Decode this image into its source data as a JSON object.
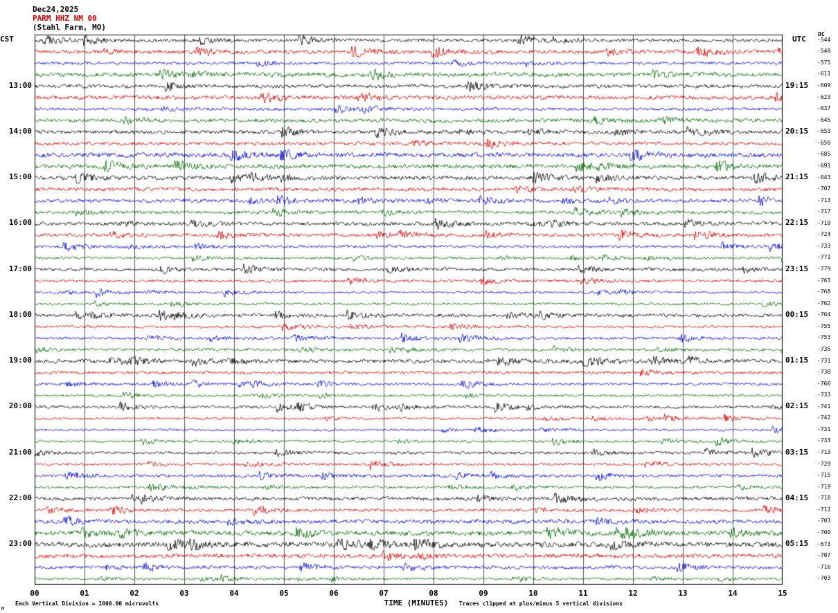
{
  "header": {
    "date": "Dec24,2025",
    "station": "PARM HHZ NM 00",
    "location": "(Stahl Farm, MO)"
  },
  "axes": {
    "left_label": "CST",
    "right_label": "UTC",
    "dc_label": "DC",
    "x_label": "TIME (MINUTES)",
    "x_ticks": [
      "00",
      "01",
      "02",
      "03",
      "04",
      "05",
      "06",
      "07",
      "08",
      "09",
      "10",
      "11",
      "12",
      "13",
      "14",
      "15"
    ]
  },
  "footer": {
    "left_note": "Each Vertical Division = 1000.00 microvolts",
    "right_note": "Traces clipped at plus/minus 5 vertical divisions",
    "corner_mark": "M"
  },
  "chart_data": {
    "type": "line",
    "title": "PARM HHZ NM 00 (Stahl Farm, MO) Dec24,2025 helicorder seismogram",
    "xlabel": "TIME (MINUTES)",
    "x_range": [
      0,
      15
    ],
    "row_duration_minutes": 15,
    "rows_per_hour": 4,
    "volts_per_division": "1000.00 microvolts",
    "clip_divisions": 5,
    "grid": true,
    "row_colors_cycle": [
      "#000000",
      "#d40000",
      "#0000cc",
      "#006600"
    ],
    "waveform_note": "continuous seismic background noise traces; rendered as seeded pseudo-random noise, per-row relative amplitude given by amp",
    "rows": [
      {
        "cst": "",
        "utc": "",
        "dc": -544,
        "amp": 1.4
      },
      {
        "cst": "",
        "utc": "",
        "dc": -548,
        "amp": 1.6
      },
      {
        "cst": "",
        "utc": "",
        "dc": -575,
        "amp": 1.2
      },
      {
        "cst": "",
        "utc": "",
        "dc": -611,
        "amp": 1.8
      },
      {
        "cst": "13:00",
        "utc": "19:15",
        "dc": -609,
        "amp": 1.5
      },
      {
        "cst": "",
        "utc": "",
        "dc": -623,
        "amp": 1.7
      },
      {
        "cst": "",
        "utc": "",
        "dc": -637,
        "amp": 1.3
      },
      {
        "cst": "",
        "utc": "",
        "dc": -645,
        "amp": 1.6
      },
      {
        "cst": "14:00",
        "utc": "20:15",
        "dc": -653,
        "amp": 1.6
      },
      {
        "cst": "",
        "utc": "",
        "dc": -650,
        "amp": 1.5
      },
      {
        "cst": "",
        "utc": "",
        "dc": -685,
        "amp": 2.0
      },
      {
        "cst": "",
        "utc": "",
        "dc": -691,
        "amp": 1.8
      },
      {
        "cst": "15:00",
        "utc": "21:15",
        "dc": -643,
        "amp": 1.7
      },
      {
        "cst": "",
        "utc": "",
        "dc": -707,
        "amp": 1.6
      },
      {
        "cst": "",
        "utc": "",
        "dc": -713,
        "amp": 1.5
      },
      {
        "cst": "",
        "utc": "",
        "dc": -717,
        "amp": 1.4
      },
      {
        "cst": "16:00",
        "utc": "22:15",
        "dc": -719,
        "amp": 1.5
      },
      {
        "cst": "",
        "utc": "",
        "dc": -724,
        "amp": 1.5
      },
      {
        "cst": "",
        "utc": "",
        "dc": -733,
        "amp": 1.2
      },
      {
        "cst": "",
        "utc": "",
        "dc": -771,
        "amp": 1.1
      },
      {
        "cst": "17:00",
        "utc": "23:15",
        "dc": -779,
        "amp": 1.4
      },
      {
        "cst": "",
        "utc": "",
        "dc": -763,
        "amp": 1.2
      },
      {
        "cst": "",
        "utc": "",
        "dc": -768,
        "amp": 1.0
      },
      {
        "cst": "",
        "utc": "",
        "dc": -762,
        "amp": 1.0
      },
      {
        "cst": "18:00",
        "utc": "00:15",
        "dc": -764,
        "amp": 1.4
      },
      {
        "cst": "",
        "utc": "",
        "dc": -755,
        "amp": 1.1
      },
      {
        "cst": "",
        "utc": "",
        "dc": -753,
        "amp": 1.2
      },
      {
        "cst": "",
        "utc": "",
        "dc": -735,
        "amp": 1.2
      },
      {
        "cst": "19:00",
        "utc": "01:15",
        "dc": -731,
        "amp": 1.7
      },
      {
        "cst": "",
        "utc": "",
        "dc": -730,
        "amp": 1.3
      },
      {
        "cst": "",
        "utc": "",
        "dc": -760,
        "amp": 1.1
      },
      {
        "cst": "",
        "utc": "",
        "dc": -733,
        "amp": 1.0
      },
      {
        "cst": "20:00",
        "utc": "02:15",
        "dc": -741,
        "amp": 1.2
      },
      {
        "cst": "",
        "utc": "",
        "dc": -742,
        "amp": 1.0
      },
      {
        "cst": "",
        "utc": "",
        "dc": -731,
        "amp": 1.0
      },
      {
        "cst": "",
        "utc": "",
        "dc": -733,
        "amp": 1.0
      },
      {
        "cst": "21:00",
        "utc": "03:15",
        "dc": -713,
        "amp": 1.2
      },
      {
        "cst": "",
        "utc": "",
        "dc": -729,
        "amp": 1.1
      },
      {
        "cst": "",
        "utc": "",
        "dc": -715,
        "amp": 1.3
      },
      {
        "cst": "",
        "utc": "",
        "dc": -719,
        "amp": 1.1
      },
      {
        "cst": "22:00",
        "utc": "04:15",
        "dc": -718,
        "amp": 1.6
      },
      {
        "cst": "",
        "utc": "",
        "dc": -711,
        "amp": 1.3
      },
      {
        "cst": "",
        "utc": "",
        "dc": -703,
        "amp": 1.7
      },
      {
        "cst": "",
        "utc": "",
        "dc": -700,
        "amp": 2.0
      },
      {
        "cst": "23:00",
        "utc": "05:15",
        "dc": -673,
        "amp": 2.2
      },
      {
        "cst": "",
        "utc": "",
        "dc": -707,
        "amp": 1.8
      },
      {
        "cst": "",
        "utc": "",
        "dc": -716,
        "amp": 1.4
      },
      {
        "cst": "",
        "utc": "",
        "dc": -703,
        "amp": 1.0
      }
    ]
  }
}
